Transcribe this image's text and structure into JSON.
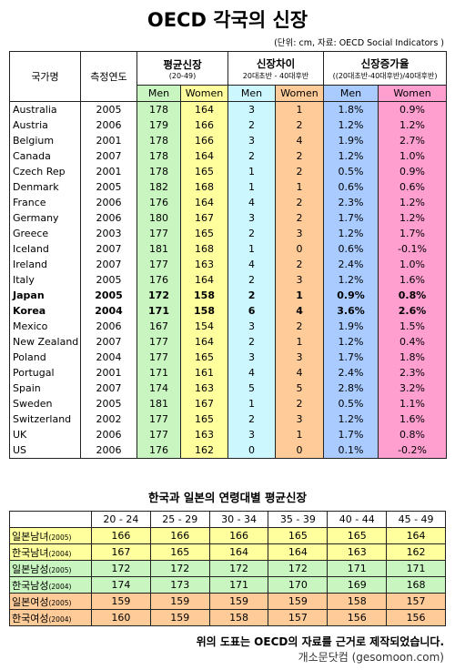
{
  "title": "OECD  각국의 신장",
  "subtitle": "(단위: cm, 자료: OECD Social Indicators )",
  "table": {
    "headers": {
      "country": "국가명",
      "year": "측정연도",
      "avg": "평균신장",
      "avg_note": "(20-49)",
      "diff": "신장차이",
      "diff_note": "20대초반 - 40대후반",
      "rate": "신장증가율",
      "rate_note": "((20대초반-40대후반)/40대후반)",
      "men": "Men",
      "women": "Women"
    },
    "highlight_rows": [
      12,
      13
    ],
    "rows": [
      [
        "Australia",
        "2005",
        "178",
        "164",
        "3",
        "1",
        "1.8%",
        "0.9%"
      ],
      [
        "Austria",
        "2006",
        "179",
        "166",
        "2",
        "2",
        "1.2%",
        "1.2%"
      ],
      [
        "Belgium",
        "2001",
        "178",
        "166",
        "3",
        "4",
        "1.9%",
        "2.7%"
      ],
      [
        "Canada",
        "2007",
        "178",
        "164",
        "2",
        "2",
        "1.2%",
        "1.0%"
      ],
      [
        "Czech Rep",
        "2001",
        "178",
        "165",
        "1",
        "2",
        "0.5%",
        "0.9%"
      ],
      [
        "Denmark",
        "2005",
        "182",
        "168",
        "1",
        "1",
        "0.6%",
        "0.6%"
      ],
      [
        "France",
        "2006",
        "176",
        "164",
        "4",
        "2",
        "2.3%",
        "1.2%"
      ],
      [
        "Germany",
        "2006",
        "180",
        "167",
        "3",
        "2",
        "1.7%",
        "1.2%"
      ],
      [
        "Greece",
        "2003",
        "177",
        "165",
        "2",
        "3",
        "1.2%",
        "1.7%"
      ],
      [
        "Iceland",
        "2007",
        "181",
        "168",
        "1",
        "0",
        "0.6%",
        "-0.1%"
      ],
      [
        "Ireland",
        "2007",
        "177",
        "163",
        "4",
        "2",
        "2.4%",
        "1.0%"
      ],
      [
        "Italy",
        "2005",
        "176",
        "164",
        "2",
        "3",
        "1.2%",
        "1.6%"
      ],
      [
        "Japan",
        "2005",
        "172",
        "158",
        "2",
        "1",
        "0.9%",
        "0.8%"
      ],
      [
        "Korea",
        "2004",
        "171",
        "158",
        "6",
        "4",
        "3.6%",
        "2.6%"
      ],
      [
        "Mexico",
        "2006",
        "167",
        "154",
        "3",
        "2",
        "1.9%",
        "1.5%"
      ],
      [
        "New Zealand",
        "2007",
        "177",
        "164",
        "2",
        "1",
        "1.2%",
        "0.4%"
      ],
      [
        "Poland",
        "2004",
        "177",
        "165",
        "3",
        "3",
        "1.7%",
        "1.8%"
      ],
      [
        "Portugal",
        "2001",
        "171",
        "161",
        "4",
        "4",
        "2.4%",
        "2.3%"
      ],
      [
        "Spain",
        "2007",
        "174",
        "163",
        "5",
        "5",
        "2.8%",
        "3.2%"
      ],
      [
        "Sweden",
        "2005",
        "181",
        "167",
        "1",
        "2",
        "0.5%",
        "1.1%"
      ],
      [
        "Switzerland",
        "2002",
        "177",
        "165",
        "2",
        "3",
        "1.2%",
        "1.6%"
      ],
      [
        "UK",
        "2006",
        "177",
        "163",
        "3",
        "1",
        "1.7%",
        "0.8%"
      ],
      [
        "US",
        "2006",
        "176",
        "162",
        "0",
        "0",
        "0.1%",
        "-0.2%"
      ]
    ]
  },
  "age_table": {
    "title": "한국과 일본의 연령대별 평균신장",
    "columns": [
      "20 - 24",
      "25 - 29",
      "30 - 34",
      "35 - 39",
      "40 - 44",
      "45 - 49"
    ],
    "rows": [
      {
        "label": "일본남녀",
        "year": "(2005)",
        "color": "#ffff9e",
        "values": [
          166,
          166,
          166,
          165,
          165,
          164
        ]
      },
      {
        "label": "한국남녀",
        "year": "(2004)",
        "color": "#ffff9e",
        "values": [
          167,
          165,
          164,
          164,
          163,
          162
        ]
      },
      {
        "label": "일본남성",
        "year": "(2005)",
        "color": "#c8f5c0",
        "values": [
          172,
          172,
          172,
          172,
          171,
          171
        ]
      },
      {
        "label": "한국남성",
        "year": "(2004)",
        "color": "#c8f5c0",
        "values": [
          174,
          173,
          171,
          170,
          169,
          168
        ]
      },
      {
        "label": "일본여성",
        "year": "(2005)",
        "color": "#ffcc99",
        "values": [
          159,
          159,
          159,
          159,
          158,
          157
        ]
      },
      {
        "label": "한국여성",
        "year": "(2004)",
        "color": "#ffcc99",
        "values": [
          160,
          159,
          158,
          157,
          156,
          156
        ]
      }
    ]
  },
  "footer": {
    "note": "위의 도표는 OECD의 자료를 근거로 제작되었습니다.",
    "source": "개소문닷컴 (gesomoon.com)"
  }
}
